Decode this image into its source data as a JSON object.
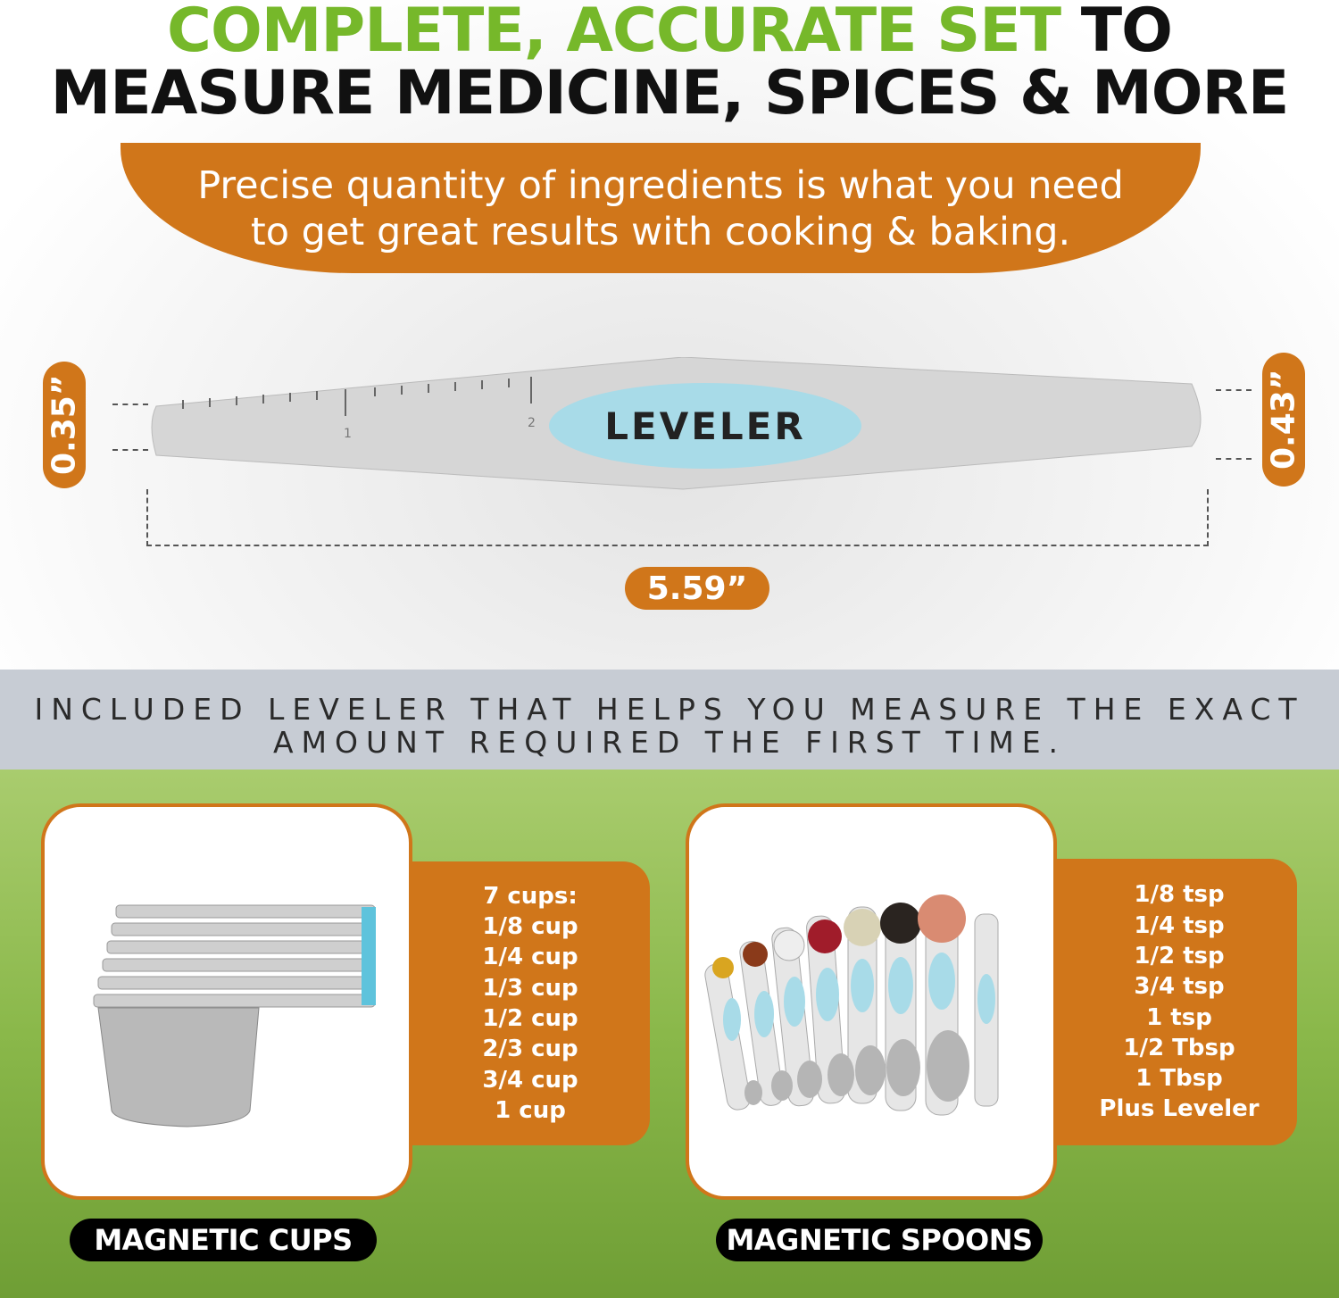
{
  "headline": {
    "line1_green": "COMPLETE, ACCURATE SET",
    "line1_black": " TO",
    "line2": "MEASURE MEDICINE, SPICES & MORE"
  },
  "banner": {
    "line1": "Precise quantity of ingredients is what you need",
    "line2": "to get great results with cooking & baking."
  },
  "leveler": {
    "label": "LEVELER",
    "ruler_marks": [
      "1",
      "2"
    ],
    "width_dim": "5.59”",
    "left_height_dim": "0.35”",
    "right_height_dim": "0.43”"
  },
  "band": {
    "line1": "INCLUDED LEVELER THAT HELPS YOU MEASURE THE EXACT",
    "line2": "AMOUNT REQUIRED THE FIRST TIME."
  },
  "cups": {
    "items": [
      "7 cups:",
      "1/8 cup",
      "1/4 cup",
      "1/3 cup",
      "1/2 cup",
      "2/3 cup",
      "3/4 cup",
      "1 cup"
    ],
    "title": "MAGNETIC CUPS"
  },
  "spoons": {
    "items": [
      "1/8 tsp",
      "1/4 tsp",
      "1/2 tsp",
      "3/4 tsp",
      "1 tsp",
      "1/2 Tbsp",
      "1 Tbsp",
      "Plus Leveler"
    ],
    "title": "MAGNETIC SPOONS"
  },
  "colors": {
    "green": "#76b82a",
    "orange": "#d0761a",
    "band": "#c7ccd4",
    "leveler_blue": "#a8dbe8"
  }
}
